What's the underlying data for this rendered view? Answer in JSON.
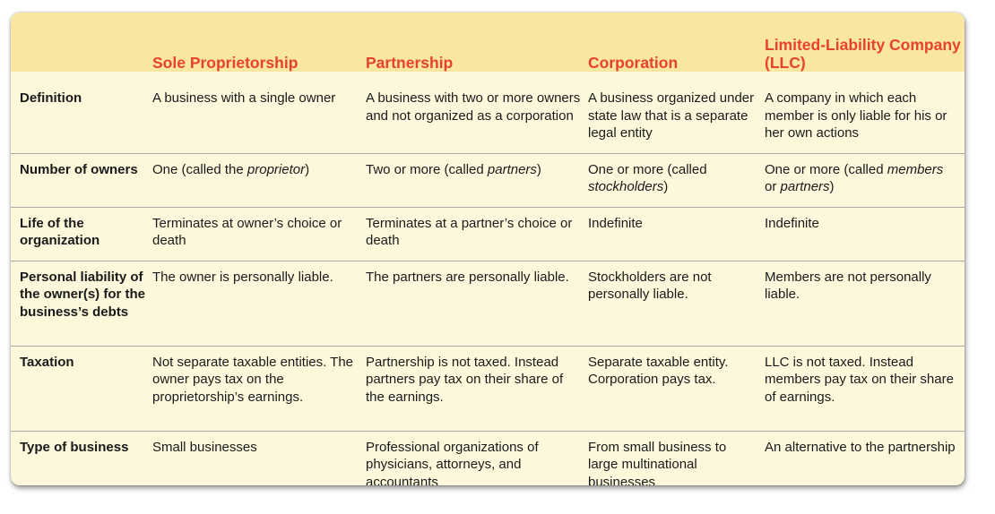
{
  "table": {
    "headers": [
      "",
      "Sole Proprietorship",
      "Partnership",
      "Corporation",
      "Limited-Liability Company (LLC)"
    ],
    "rows": [
      {
        "label": "Definition",
        "cells": [
          "A business with a single owner",
          "A business with two or more owners and not organized as a corporation",
          "A business organized under state law that is a separate legal entity",
          "A company in which each member is only liable for his or her own actions"
        ]
      },
      {
        "label": "Number of owners",
        "cells": [
          {
            "pre": "One (called the ",
            "em": "proprietor",
            "post": ")"
          },
          {
            "pre": "Two or more (called ",
            "em": "partners",
            "post": ")"
          },
          {
            "pre": "One or more (called ",
            "em": "stockholders",
            "post": ")"
          },
          {
            "pre": "One or more (called ",
            "em": "members",
            "mid": " or ",
            "em2": "partners",
            "post": ")"
          }
        ]
      },
      {
        "label": "Life of the organization",
        "cells": [
          "Terminates at owner’s choice or death",
          "Terminates at a partner’s choice or death",
          "Indefinite",
          "Indefinite"
        ]
      },
      {
        "label": "Personal liability of the owner(s) for the business’s debts",
        "cells": [
          "The owner is personally liable.",
          "The partners are personally liable.",
          "Stockholders are not personally liable.",
          "Members are not personally liable."
        ]
      },
      {
        "label": "Taxation",
        "cells": [
          "Not separate taxable entities. The owner pays tax on the proprietorship’s earnings.",
          "Partnership is not taxed. Instead partners pay tax on their share of the earnings.",
          "Separate taxable entity. Corporation pays tax.",
          "LLC is not taxed. Instead members pay tax on their share of earnings."
        ]
      },
      {
        "label": "Type of business",
        "cells": [
          "Small businesses",
          "Professional organizations of physicians, attorneys, and accountants",
          "From small business to large multinational businesses",
          "An alternative to the partnership"
        ]
      }
    ]
  },
  "colors": {
    "header_text": "#e8412c",
    "header_band": "#f9e7a0",
    "body_background": "#fdf8dc",
    "rule": "#a9a9a9"
  }
}
